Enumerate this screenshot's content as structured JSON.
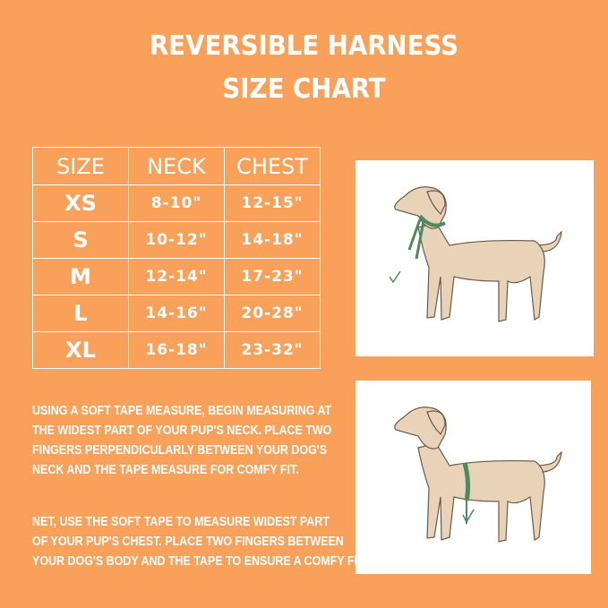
{
  "title": {
    "line1": "REVERSIBLE HARNESS",
    "line2": "SIZE CHART"
  },
  "table": {
    "headers": [
      "SIZE",
      "NECK",
      "CHEST"
    ],
    "rows": [
      {
        "size": "XS",
        "neck": "8-10\"",
        "chest": "12-15\""
      },
      {
        "size": "S",
        "neck": "10-12\"",
        "chest": "14-18\""
      },
      {
        "size": "M",
        "neck": "12-14\"",
        "chest": "17-23\""
      },
      {
        "size": "L",
        "neck": "14-16\"",
        "chest": "20-28\""
      },
      {
        "size": "XL",
        "neck": "16-18\"",
        "chest": "23-32\""
      }
    ]
  },
  "instructions": {
    "neck": [
      "Using a soft tape measure, begin measuring at",
      "the widest part of your pup's neck. Place two",
      "fingers perpendicularly between your dog's",
      "neck and the tape measure for comfy fit."
    ],
    "chest": [
      "Net, use the soft tape to measure widest part",
      "of your pup's chest. Place two fingers between",
      "your dog's body and the tape to ensure a comfy fit"
    ]
  },
  "colors": {
    "background": "#F9A05A",
    "text": "#FFFFFF",
    "dog": "#E8D2B8",
    "tape": "#4E8A5E"
  },
  "images": [
    "dog-neck-measurement-illustration",
    "dog-chest-measurement-illustration"
  ]
}
